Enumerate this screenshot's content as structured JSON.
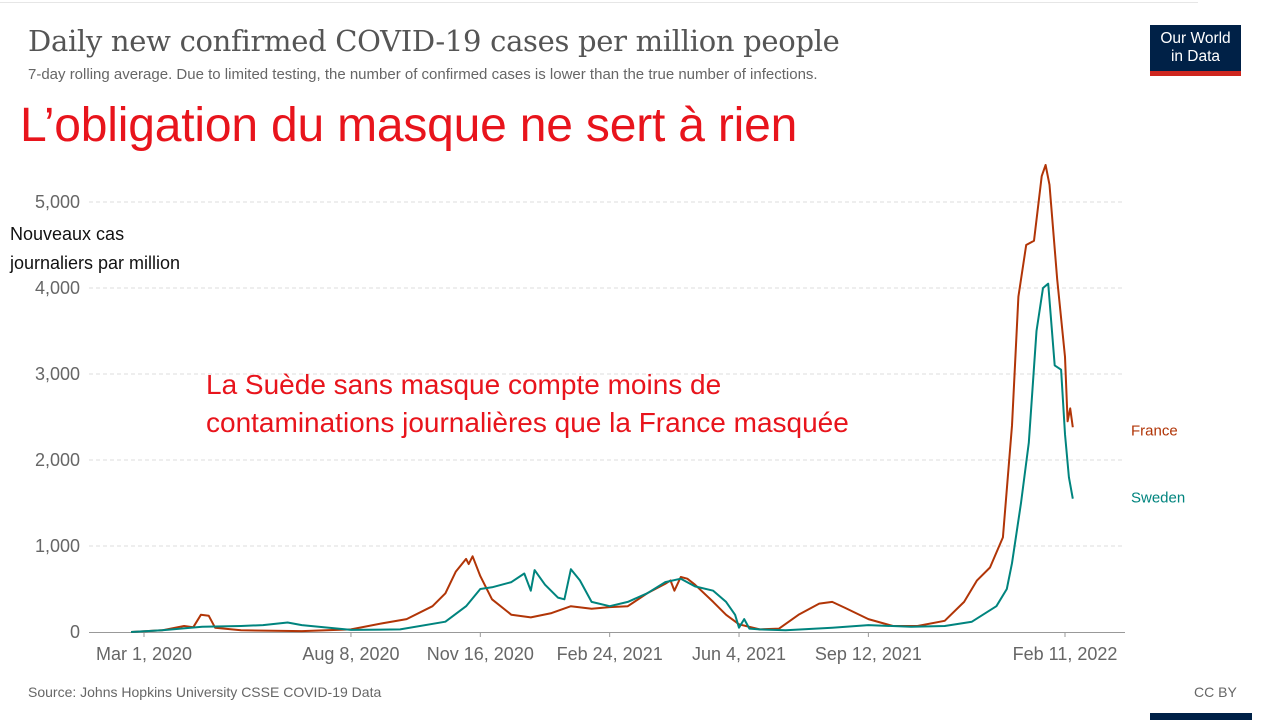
{
  "header": {
    "title": "Daily new confirmed COVID-19 cases per million people",
    "subtitle": "7-day rolling average. Due to limited testing, the number of confirmed cases is lower than the true number of infections.",
    "logo_line1": "Our World",
    "logo_line2": "in Data"
  },
  "overlay": {
    "headline": "L’obligation du masque ne sert à rien",
    "ylabel_line1": "Nouveaux cas",
    "ylabel_line2": "journaliers par million",
    "annotation_line1": "La Suède sans masque compte moins de",
    "annotation_line2": "contaminations journalières que la France masquée"
  },
  "footer": {
    "source": "Source: Johns Hopkins University CSSE COVID-19 Data",
    "license": "CC BY"
  },
  "colors": {
    "france": "#b13507",
    "sweden": "#00847e",
    "overlay_red": "#e8141c",
    "grid": "#dddddd",
    "logo_bg": "#002147",
    "logo_accent": "#ce261e"
  },
  "chart_data": {
    "type": "line",
    "x_type": "date",
    "x_range": [
      "2020-02-20",
      "2022-03-10"
    ],
    "ylim": [
      0,
      5500
    ],
    "y_ticks": [
      0,
      1000,
      2000,
      3000,
      4000,
      5000
    ],
    "y_tick_labels": [
      "0",
      "1,000",
      "2,000",
      "3,000",
      "4,000",
      "5,000"
    ],
    "x_ticks": [
      "2020-03-01",
      "2020-08-08",
      "2020-11-16",
      "2021-02-24",
      "2021-06-04",
      "2021-09-12",
      "2022-02-11"
    ],
    "x_tick_labels": [
      "Mar 1, 2020",
      "Aug 8, 2020",
      "Nov 16, 2020",
      "Feb 24, 2021",
      "Jun 4, 2021",
      "Sep 12, 2021",
      "Feb 11, 2022"
    ],
    "grid": "horizontal dashed",
    "legend": "inline labels at line ends",
    "series": [
      {
        "name": "France",
        "points": [
          [
            "2020-02-20",
            0
          ],
          [
            "2020-03-15",
            20
          ],
          [
            "2020-04-01",
            70
          ],
          [
            "2020-04-08",
            55
          ],
          [
            "2020-04-14",
            200
          ],
          [
            "2020-04-20",
            190
          ],
          [
            "2020-04-25",
            50
          ],
          [
            "2020-05-15",
            20
          ],
          [
            "2020-07-01",
            10
          ],
          [
            "2020-08-08",
            30
          ],
          [
            "2020-09-01",
            100
          ],
          [
            "2020-09-20",
            150
          ],
          [
            "2020-10-10",
            300
          ],
          [
            "2020-10-20",
            450
          ],
          [
            "2020-10-28",
            700
          ],
          [
            "2020-11-05",
            850
          ],
          [
            "2020-11-07",
            790
          ],
          [
            "2020-11-10",
            880
          ],
          [
            "2020-11-16",
            650
          ],
          [
            "2020-11-25",
            380
          ],
          [
            "2020-12-10",
            200
          ],
          [
            "2020-12-25",
            170
          ],
          [
            "2021-01-10",
            220
          ],
          [
            "2021-01-25",
            300
          ],
          [
            "2021-02-10",
            270
          ],
          [
            "2021-02-24",
            290
          ],
          [
            "2021-03-10",
            300
          ],
          [
            "2021-03-25",
            450
          ],
          [
            "2021-04-08",
            560
          ],
          [
            "2021-04-12",
            600
          ],
          [
            "2021-04-15",
            480
          ],
          [
            "2021-04-20",
            640
          ],
          [
            "2021-04-25",
            620
          ],
          [
            "2021-05-01",
            550
          ],
          [
            "2021-05-15",
            350
          ],
          [
            "2021-05-25",
            200
          ],
          [
            "2021-06-04",
            90
          ],
          [
            "2021-06-20",
            30
          ],
          [
            "2021-07-05",
            40
          ],
          [
            "2021-07-20",
            200
          ],
          [
            "2021-08-05",
            330
          ],
          [
            "2021-08-15",
            350
          ],
          [
            "2021-08-25",
            280
          ],
          [
            "2021-09-12",
            150
          ],
          [
            "2021-10-01",
            70
          ],
          [
            "2021-10-20",
            70
          ],
          [
            "2021-11-10",
            130
          ],
          [
            "2021-11-25",
            350
          ],
          [
            "2021-12-05",
            600
          ],
          [
            "2021-12-15",
            750
          ],
          [
            "2021-12-25",
            1100
          ],
          [
            "2022-01-01",
            2400
          ],
          [
            "2022-01-06",
            3900
          ],
          [
            "2022-01-12",
            4500
          ],
          [
            "2022-01-18",
            4550
          ],
          [
            "2022-01-24",
            5300
          ],
          [
            "2022-01-27",
            5430
          ],
          [
            "2022-01-30",
            5200
          ],
          [
            "2022-02-05",
            4100
          ],
          [
            "2022-02-11",
            3200
          ],
          [
            "2022-02-13",
            2450
          ],
          [
            "2022-02-15",
            2600
          ],
          [
            "2022-02-17",
            2380
          ]
        ]
      },
      {
        "name": "Sweden",
        "points": [
          [
            "2020-02-20",
            0
          ],
          [
            "2020-03-15",
            20
          ],
          [
            "2020-04-15",
            60
          ],
          [
            "2020-05-15",
            70
          ],
          [
            "2020-06-01",
            80
          ],
          [
            "2020-06-20",
            110
          ],
          [
            "2020-07-01",
            80
          ],
          [
            "2020-08-08",
            25
          ],
          [
            "2020-09-15",
            30
          ],
          [
            "2020-10-20",
            120
          ],
          [
            "2020-11-05",
            300
          ],
          [
            "2020-11-16",
            500
          ],
          [
            "2020-11-25",
            520
          ],
          [
            "2020-12-10",
            580
          ],
          [
            "2020-12-20",
            680
          ],
          [
            "2020-12-25",
            480
          ],
          [
            "2020-12-28",
            720
          ],
          [
            "2021-01-05",
            550
          ],
          [
            "2021-01-15",
            400
          ],
          [
            "2021-01-20",
            380
          ],
          [
            "2021-01-25",
            730
          ],
          [
            "2021-02-01",
            600
          ],
          [
            "2021-02-10",
            350
          ],
          [
            "2021-02-24",
            300
          ],
          [
            "2021-03-10",
            350
          ],
          [
            "2021-03-25",
            450
          ],
          [
            "2021-04-08",
            580
          ],
          [
            "2021-04-20",
            620
          ],
          [
            "2021-05-01",
            530
          ],
          [
            "2021-05-15",
            480
          ],
          [
            "2021-05-25",
            350
          ],
          [
            "2021-06-01",
            200
          ],
          [
            "2021-06-04",
            50
          ],
          [
            "2021-06-08",
            150
          ],
          [
            "2021-06-12",
            40
          ],
          [
            "2021-06-20",
            30
          ],
          [
            "2021-07-10",
            20
          ],
          [
            "2021-08-15",
            50
          ],
          [
            "2021-09-12",
            80
          ],
          [
            "2021-10-15",
            60
          ],
          [
            "2021-11-10",
            70
          ],
          [
            "2021-12-01",
            120
          ],
          [
            "2021-12-20",
            300
          ],
          [
            "2021-12-28",
            500
          ],
          [
            "2022-01-01",
            800
          ],
          [
            "2022-01-08",
            1500
          ],
          [
            "2022-01-14",
            2200
          ],
          [
            "2022-01-20",
            3500
          ],
          [
            "2022-01-25",
            4000
          ],
          [
            "2022-01-29",
            4050
          ],
          [
            "2022-02-03",
            3100
          ],
          [
            "2022-02-08",
            3050
          ],
          [
            "2022-02-11",
            2300
          ],
          [
            "2022-02-14",
            1800
          ],
          [
            "2022-02-17",
            1550
          ]
        ]
      }
    ]
  }
}
